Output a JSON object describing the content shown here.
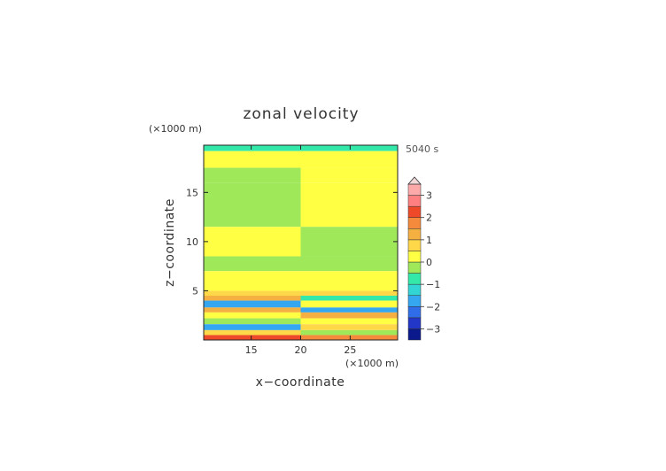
{
  "chart_data": {
    "type": "heatmap",
    "title": "zonal velocity",
    "xlabel": "x−coordinate",
    "ylabel": "z−coordinate",
    "x_unit": "(×1000 m)",
    "y_unit": "(×1000 m)",
    "time_label": "5040 s",
    "xlim": [
      10.2,
      29.8
    ],
    "ylim": [
      0,
      19.8
    ],
    "x_ticks": [
      15,
      20,
      25
    ],
    "x_tick_labels": [
      "15",
      "20",
      "25"
    ],
    "y_ticks": [
      5,
      10,
      15
    ],
    "y_tick_labels": [
      "5",
      "10",
      "15"
    ],
    "colorbar": {
      "levels": [
        -3.5,
        -3,
        -2.5,
        -2,
        -1.5,
        -1,
        -0.5,
        0,
        0.5,
        1,
        1.5,
        2,
        2.5,
        3,
        3.5
      ],
      "colors": [
        "#0a1a8c",
        "#2236c8",
        "#2f6ee8",
        "#35a6f0",
        "#33d4d4",
        "#33e8a8",
        "#9ee85a",
        "#ffff44",
        "#ffd84a",
        "#f5b042",
        "#f58a3c",
        "#ee4a2a",
        "#ff8080",
        "#ffaaaa"
      ],
      "tick_values": [
        -3,
        -2,
        -1,
        0,
        1,
        2,
        3
      ],
      "tick_labels": [
        "−3",
        "−2",
        "−1",
        "0",
        "1",
        "2",
        "3"
      ],
      "overflow_triangle": "top"
    },
    "series": [
      {
        "note": "zonal velocity field u(x, z); value per band across x left→right",
        "x_bins": [
          10.2,
          20,
          29.8
        ],
        "bands": [
          {
            "z": [
              19.2,
              19.8
            ],
            "left": -0.8,
            "right": -0.6
          },
          {
            "z": [
              17.5,
              19.2
            ],
            "left": 0.3,
            "right": 0.3
          },
          {
            "z": [
              16.0,
              17.5
            ],
            "left": -0.3,
            "right": 0.3
          },
          {
            "z": [
              11.5,
              16.0
            ],
            "left": -0.3,
            "right": 0.3
          },
          {
            "z": [
              8.5,
              11.5
            ],
            "left": 0.3,
            "right": -0.3
          },
          {
            "z": [
              7.0,
              8.5
            ],
            "left": -0.3,
            "right": -0.3
          },
          {
            "z": [
              5.0,
              7.0
            ],
            "left": 0.3,
            "right": 0.3
          },
          {
            "z": [
              4.5,
              5.0
            ],
            "left": 0.6,
            "right": 0.6
          },
          {
            "z": [
              4.0,
              4.5
            ],
            "left": 1.2,
            "right": -0.8
          },
          {
            "z": [
              3.3,
              4.0
            ],
            "left": -1.8,
            "right": 0.4
          },
          {
            "z": [
              2.8,
              3.3
            ],
            "left": 1.4,
            "right": -1.9
          },
          {
            "z": [
              2.2,
              2.8
            ],
            "left": 0.3,
            "right": 1.2
          },
          {
            "z": [
              1.6,
              2.2
            ],
            "left": -0.3,
            "right": 0.3
          },
          {
            "z": [
              1.0,
              1.6
            ],
            "left": -1.8,
            "right": 0.7
          },
          {
            "z": [
              0.5,
              1.0
            ],
            "left": 0.6,
            "right": -0.5
          },
          {
            "z": [
              0.0,
              0.5
            ],
            "left": 2.3,
            "right": 1.8
          }
        ]
      }
    ]
  }
}
